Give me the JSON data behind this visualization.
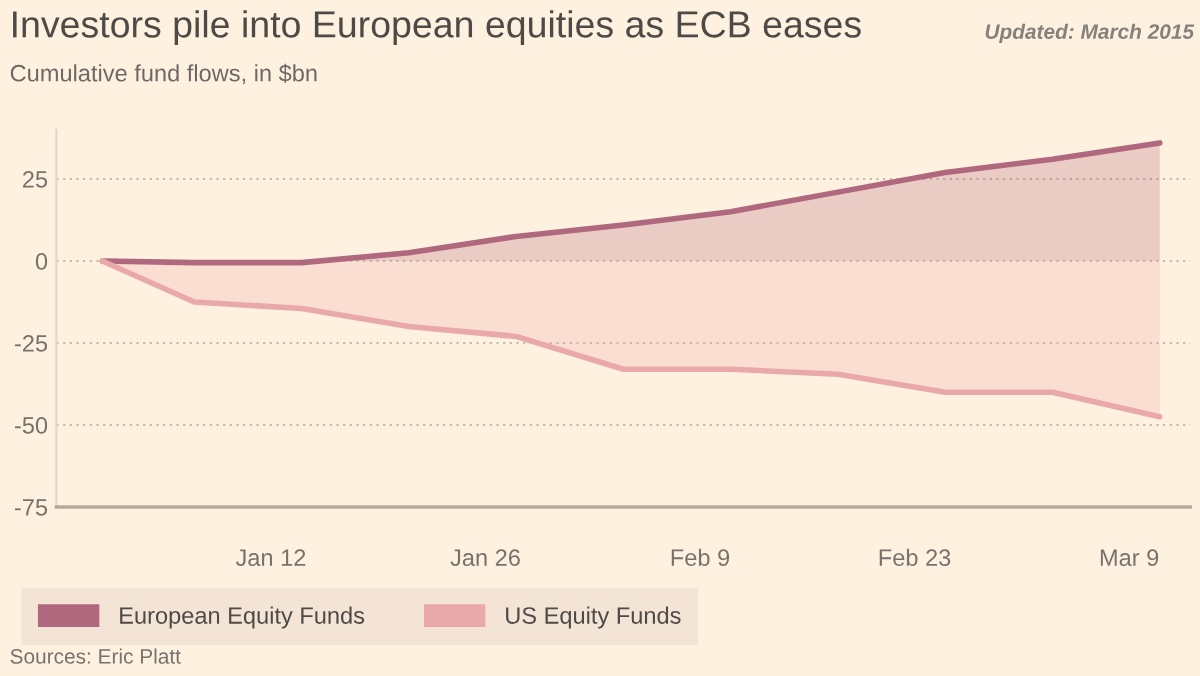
{
  "chart_data": {
    "type": "area",
    "title": "Investors pile into European equities as ECB eases",
    "subtitle": "Cumulative fund flows, in $bn",
    "annotations": [
      "Updated: March 2015",
      "Sources: Eric Platt"
    ],
    "x": [
      "2015-01-01",
      "2015-01-07",
      "2015-01-14",
      "2015-01-21",
      "2015-01-28",
      "2015-02-04",
      "2015-02-11",
      "2015-02-18",
      "2015-02-25",
      "2015-03-04",
      "2015-03-11"
    ],
    "series": [
      {
        "name": "European Equity Funds",
        "color": "#b0687e",
        "values": [
          0,
          -0.5,
          -0.5,
          2.5,
          7.5,
          11,
          15,
          21,
          27,
          31,
          36
        ]
      },
      {
        "name": "US Equity Funds",
        "color": "#e9a9aa",
        "values": [
          0,
          -12.5,
          -14.5,
          -20,
          -23,
          -33,
          -33,
          -34.5,
          -40,
          -40,
          -47.5
        ]
      }
    ],
    "xlim": [
      "2014-12-29",
      "2015-03-13"
    ],
    "xticks": [
      {
        "value": "2015-01-12",
        "label": "Jan 12"
      },
      {
        "value": "2015-01-26",
        "label": "Jan 26"
      },
      {
        "value": "2015-02-09",
        "label": "Feb 9"
      },
      {
        "value": "2015-02-23",
        "label": "Feb 23"
      },
      {
        "value": "2015-03-09",
        "label": "Mar 9"
      }
    ],
    "ylim": [
      -75,
      40
    ],
    "yticks": [
      -75,
      -50,
      -25,
      0,
      25
    ],
    "grid": "y",
    "legend": "bottom"
  }
}
